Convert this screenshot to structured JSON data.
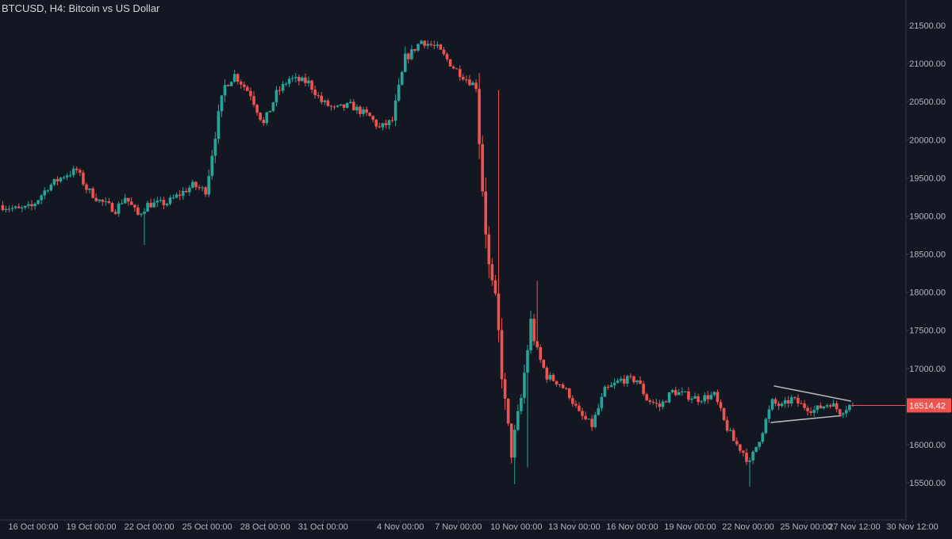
{
  "header": {
    "title": "BTCUSD, H4: Bitcoin vs US Dollar"
  },
  "colors": {
    "background": "#131722",
    "bull": "#26a69a",
    "bear": "#ef5350",
    "axis_text": "#b2b5be",
    "axis_line": "#363a45",
    "trendline": "#b2b5be",
    "price_line": "#ef5350",
    "price_tag": "#ef5350"
  },
  "chart_data": {
    "type": "candlestick",
    "symbol": "BTCUSD",
    "timeframe": "H4",
    "title": "BTCUSD, H4: Bitcoin vs US Dollar",
    "grid": false,
    "ylim": [
      15300,
      21650
    ],
    "yticks": [
      "21500.00",
      "21000.00",
      "20500.00",
      "20000.00",
      "19500.00",
      "19000.00",
      "18500.00",
      "18000.00",
      "17500.00",
      "17000.00",
      "16000.00",
      "15500.00"
    ],
    "xlim": [
      "2022-10-14 08:00",
      "2022-11-30 20:00"
    ],
    "xticks": [
      "16 Oct 00:00",
      "19 Oct 00:00",
      "22 Oct 00:00",
      "25 Oct 00:00",
      "28 Oct 00:00",
      "31 Oct 00:00",
      "4 Nov 00:00",
      "7 Nov 00:00",
      "10 Nov 00:00",
      "13 Nov 00:00",
      "16 Nov 00:00",
      "19 Nov 00:00",
      "22 Nov 00:00",
      "25 Nov 00:00",
      "27 Nov 12:00",
      "30 Nov 12:00"
    ],
    "last_price": 16514.42,
    "last_price_label": "16514.42",
    "price_path": [
      [
        "2022-10-14 08:00",
        19140
      ],
      [
        "2022-10-15 08:00",
        19080
      ],
      [
        "2022-10-16 00:00",
        19120
      ],
      [
        "2022-10-16 20:00",
        19380
      ],
      [
        "2022-10-17 16:00",
        19530
      ],
      [
        "2022-10-18 08:00",
        19600
      ],
      [
        "2022-10-18 20:00",
        19360
      ],
      [
        "2022-10-19 12:00",
        19200
      ],
      [
        "2022-10-20 08:00",
        19080
      ],
      [
        "2022-10-20 20:00",
        19250
      ],
      [
        "2022-10-21 12:00",
        19010
      ],
      [
        "2022-10-22 00:00",
        19150
      ],
      [
        "2022-10-23 00:00",
        19170
      ],
      [
        "2022-10-24 08:00",
        19400
      ],
      [
        "2022-10-25 00:00",
        19330
      ],
      [
        "2022-10-25 12:00",
        20100
      ],
      [
        "2022-10-26 00:00",
        20700
      ],
      [
        "2022-10-26 12:00",
        20850
      ],
      [
        "2022-10-27 08:00",
        20600
      ],
      [
        "2022-10-28 00:00",
        20200
      ],
      [
        "2022-10-28 16:00",
        20600
      ],
      [
        "2022-10-29 08:00",
        20800
      ],
      [
        "2022-10-30 08:00",
        20750
      ],
      [
        "2022-10-31 00:00",
        20500
      ],
      [
        "2022-10-31 16:00",
        20400
      ],
      [
        "2022-11-01 12:00",
        20450
      ],
      [
        "2022-11-02 12:00",
        20300
      ],
      [
        "2022-11-03 00:00",
        20150
      ],
      [
        "2022-11-03 16:00",
        20250
      ],
      [
        "2022-11-04 08:00",
        21050
      ],
      [
        "2022-11-05 04:00",
        21300
      ],
      [
        "2022-11-06 00:00",
        21200
      ],
      [
        "2022-11-06 20:00",
        20950
      ],
      [
        "2022-11-07 12:00",
        20800
      ],
      [
        "2022-11-08 00:00",
        20700
      ],
      [
        "2022-11-08 08:00",
        19400
      ],
      [
        "2022-11-08 16:00",
        18300
      ],
      [
        "2022-11-09 00:00",
        17900
      ],
      [
        "2022-11-09 12:00",
        16500
      ],
      [
        "2022-11-09 20:00",
        15900
      ],
      [
        "2022-11-10 08:00",
        16600
      ],
      [
        "2022-11-10 20:00",
        17600
      ],
      [
        "2022-11-11 04:00",
        17200
      ],
      [
        "2022-11-11 16:00",
        16900
      ],
      [
        "2022-11-12 08:00",
        16800
      ],
      [
        "2022-11-12 20:00",
        16650
      ],
      [
        "2022-11-13 08:00",
        16400
      ],
      [
        "2022-11-14 00:00",
        16250
      ],
      [
        "2022-11-14 16:00",
        16700
      ],
      [
        "2022-11-15 12:00",
        16850
      ],
      [
        "2022-11-16 08:00",
        16850
      ],
      [
        "2022-11-16 20:00",
        16600
      ],
      [
        "2022-11-17 12:00",
        16500
      ],
      [
        "2022-11-18 04:00",
        16700
      ],
      [
        "2022-11-18 20:00",
        16650
      ],
      [
        "2022-11-19 12:00",
        16600
      ],
      [
        "2022-11-20 08:00",
        16650
      ],
      [
        "2022-11-20 20:00",
        16300
      ],
      [
        "2022-11-21 08:00",
        16050
      ],
      [
        "2022-11-21 20:00",
        15900
      ],
      [
        "2022-11-22 04:00",
        15750
      ],
      [
        "2022-11-22 20:00",
        16200
      ],
      [
        "2022-11-23 08:00",
        16550
      ],
      [
        "2022-11-23 20:00",
        16500
      ],
      [
        "2022-11-24 08:00",
        16600
      ],
      [
        "2022-11-24 20:00",
        16520
      ],
      [
        "2022-11-25 12:00",
        16450
      ],
      [
        "2022-11-26 08:00",
        16550
      ],
      [
        "2022-11-26 20:00",
        16430
      ],
      [
        "2022-11-27 08:00",
        16514
      ]
    ],
    "shocks": [
      {
        "time": "2022-10-21 16:00",
        "low": 18620
      },
      {
        "time": "2022-11-09 00:00",
        "high": 20650
      },
      {
        "time": "2022-11-09 20:00",
        "low": 15480
      },
      {
        "time": "2022-11-10 12:00",
        "low": 15700
      },
      {
        "time": "2022-11-11 00:00",
        "high": 18150
      },
      {
        "time": "2022-11-22 00:00",
        "low": 15450
      }
    ],
    "annotations": [
      {
        "type": "trendline",
        "from": [
          "2022-11-23 08:00",
          16770
        ],
        "to": [
          "2022-11-27 08:00",
          16570
        ]
      },
      {
        "type": "trendline",
        "from": [
          "2022-11-23 04:00",
          16290
        ],
        "to": [
          "2022-11-26 20:00",
          16380
        ]
      }
    ]
  }
}
